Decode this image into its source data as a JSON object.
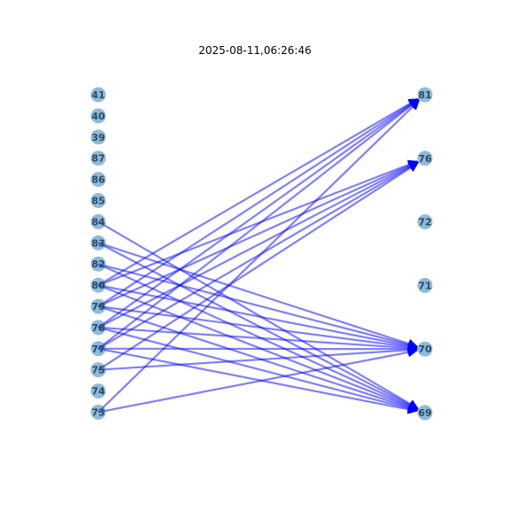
{
  "title": "2025-08-11,06:26:46",
  "colors": {
    "node_fill": "#1f77b4",
    "edge": "#0000ff",
    "node_label": "#2b4a63"
  },
  "left_nodes": [
    "41",
    "40",
    "39",
    "87",
    "86",
    "85",
    "84",
    "83",
    "82",
    "80",
    "79",
    "78",
    "77",
    "75",
    "74",
    "73"
  ],
  "right_nodes": [
    "81",
    "76",
    "72",
    "71",
    "70",
    "69"
  ],
  "edges": [
    [
      "80",
      "81"
    ],
    [
      "79",
      "81"
    ],
    [
      "78",
      "81"
    ],
    [
      "77",
      "81"
    ],
    [
      "73",
      "81"
    ],
    [
      "80",
      "76"
    ],
    [
      "79",
      "76"
    ],
    [
      "78",
      "76"
    ],
    [
      "77",
      "76"
    ],
    [
      "75",
      "76"
    ],
    [
      "83",
      "70"
    ],
    [
      "82",
      "70"
    ],
    [
      "80",
      "70"
    ],
    [
      "79",
      "70"
    ],
    [
      "78",
      "70"
    ],
    [
      "77",
      "70"
    ],
    [
      "75",
      "70"
    ],
    [
      "73",
      "70"
    ],
    [
      "84",
      "69"
    ],
    [
      "83",
      "69"
    ],
    [
      "82",
      "69"
    ],
    [
      "80",
      "69"
    ],
    [
      "79",
      "69"
    ],
    [
      "78",
      "69"
    ],
    [
      "77",
      "69"
    ]
  ]
}
